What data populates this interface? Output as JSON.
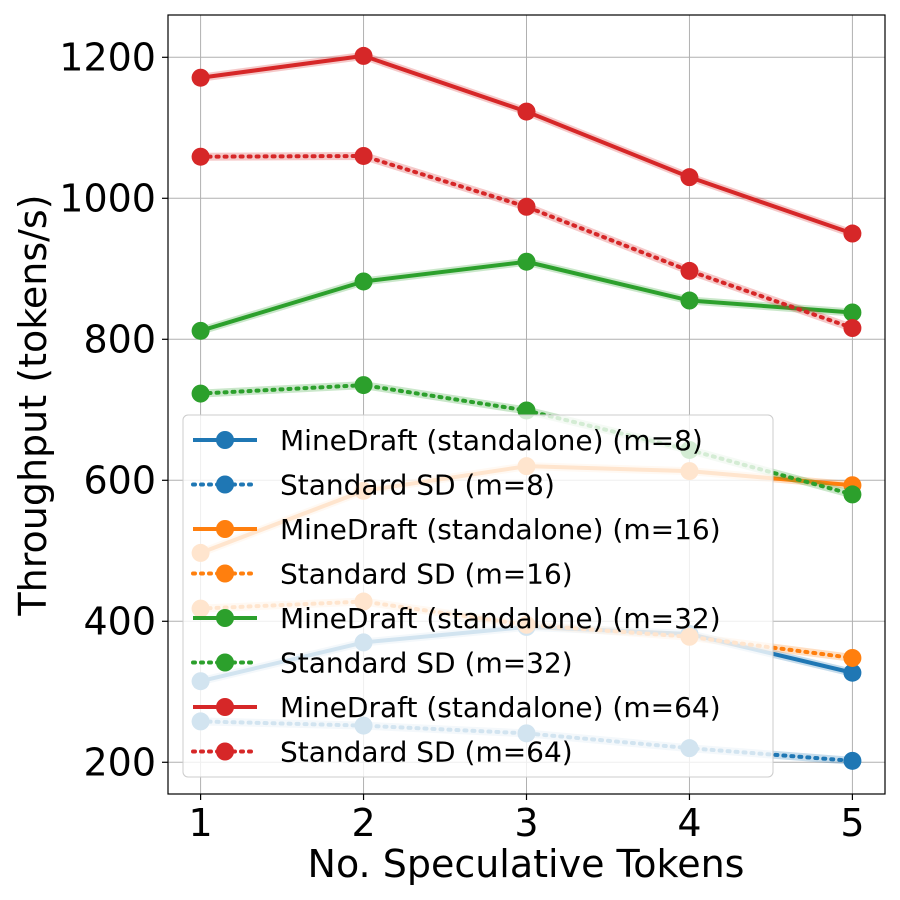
{
  "chart_data": {
    "type": "line",
    "title": "",
    "xlabel": "No. Speculative Tokens",
    "ylabel": "Throughput (tokens/s)",
    "x": [
      1,
      2,
      3,
      4,
      5
    ],
    "xlim": [
      0.8,
      5.2
    ],
    "ylim": [
      155,
      1260
    ],
    "xticks": [
      "1",
      "2",
      "3",
      "4",
      "5"
    ],
    "yticks": [
      200,
      400,
      600,
      800,
      1000,
      1200
    ],
    "grid": true,
    "legend_position": "lower-left",
    "series": [
      {
        "name": "MineDraft (standalone) (m=8)",
        "color": "#1f77b4",
        "style": "solid",
        "values": [
          315,
          370,
          392,
          382,
          327
        ]
      },
      {
        "name": "Standard SD (m=8)",
        "color": "#1f77b4",
        "style": "dotted",
        "values": [
          258,
          252,
          241,
          220,
          202
        ]
      },
      {
        "name": "MineDraft (standalone) (m=16)",
        "color": "#ff7f0e",
        "style": "solid",
        "values": [
          497,
          585,
          620,
          613,
          593
        ]
      },
      {
        "name": "Standard SD (m=16)",
        "color": "#ff7f0e",
        "style": "dotted",
        "values": [
          418,
          428,
          395,
          378,
          348
        ]
      },
      {
        "name": "MineDraft (standalone) (m=32)",
        "color": "#2ca02c",
        "style": "solid",
        "values": [
          812,
          882,
          910,
          855,
          838
        ]
      },
      {
        "name": "Standard SD (m=32)",
        "color": "#2ca02c",
        "style": "dotted",
        "values": [
          723,
          735,
          699,
          643,
          580
        ]
      },
      {
        "name": "MineDraft (standalone) (m=64)",
        "color": "#d62728",
        "style": "solid",
        "values": [
          1171,
          1202,
          1123,
          1030,
          950
        ]
      },
      {
        "name": "Standard SD (m=64)",
        "color": "#d62728",
        "style": "dotted",
        "values": [
          1059,
          1060,
          988,
          897,
          816
        ]
      }
    ]
  }
}
